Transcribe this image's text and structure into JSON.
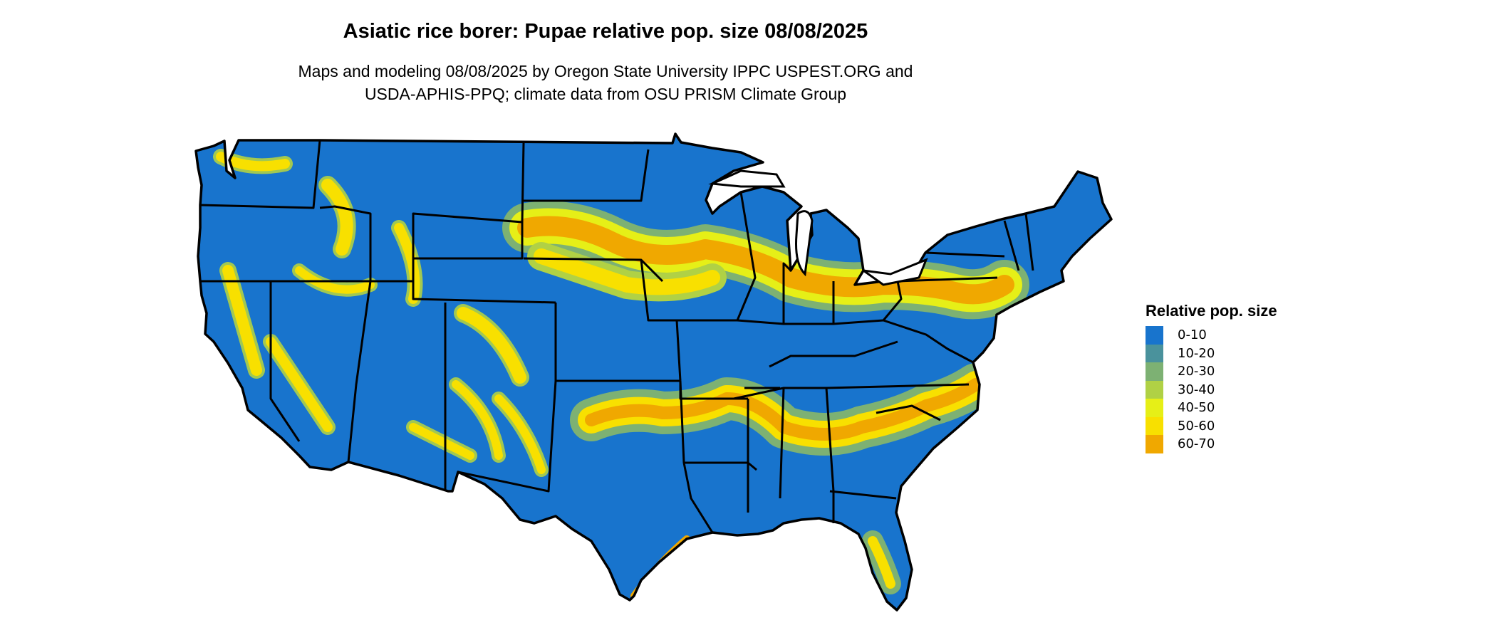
{
  "title": "Asiatic rice borer: Pupae relative pop. size 08/08/2025",
  "subtitle_line1": "Maps and modeling 08/08/2025 by Oregon State University IPPC USPEST.ORG and",
  "subtitle_line2": "USDA-APHIS-PPQ; climate data from OSU PRISM Climate Group",
  "legend": {
    "title": "Relative pop. size",
    "items": [
      {
        "label": "0-10",
        "color": "#1874CD"
      },
      {
        "label": "10-20",
        "color": "#4A929C"
      },
      {
        "label": "20-30",
        "color": "#7DB173"
      },
      {
        "label": "30-40",
        "color": "#B0D145"
      },
      {
        "label": "40-50",
        "color": "#E6EF17"
      },
      {
        "label": "50-60",
        "color": "#F8E000"
      },
      {
        "label": "60-70",
        "color": "#F0A800"
      }
    ]
  },
  "map": {
    "region": "Contiguous United States",
    "boundaries": "state",
    "border_color": "#000000"
  }
}
